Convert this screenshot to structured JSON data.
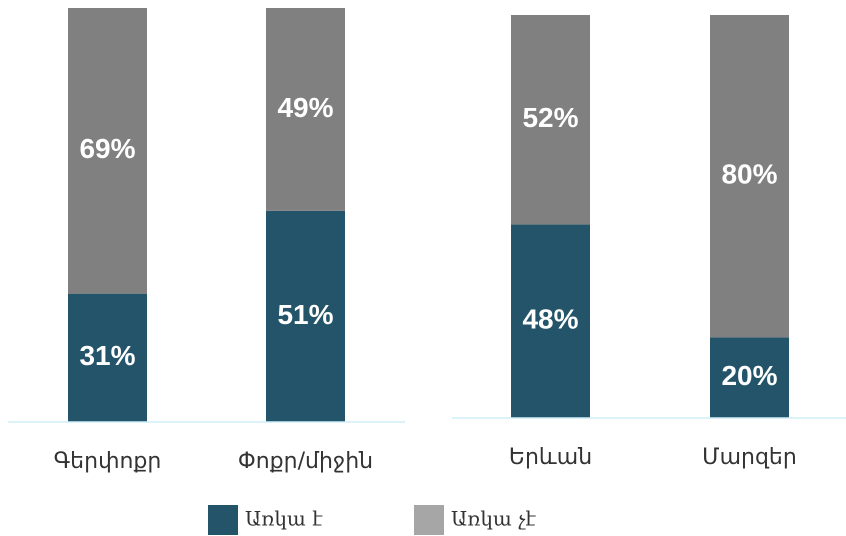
{
  "chart_data": [
    {
      "type": "bar",
      "stacked": true,
      "categories": [
        "Գերփոքր",
        "Փոքր/միջին"
      ],
      "ylim": [
        0,
        100
      ],
      "series": [
        {
          "name": "Առկա է",
          "color": "#23546a",
          "values": [
            31,
            51
          ],
          "value_labels": [
            "31%",
            "51%"
          ]
        },
        {
          "name": "Առկա չէ",
          "color": "#808080",
          "values": [
            69,
            49
          ],
          "value_labels": [
            "69%",
            "49%"
          ]
        }
      ]
    },
    {
      "type": "bar",
      "stacked": true,
      "categories": [
        "Երևան",
        "Մարզեր"
      ],
      "ylim": [
        0,
        100
      ],
      "series": [
        {
          "name": "Առկա է",
          "color": "#23546a",
          "values": [
            48,
            20
          ],
          "value_labels": [
            "48%",
            "20%"
          ]
        },
        {
          "name": "Առկա չէ",
          "color": "#808080",
          "values": [
            52,
            80
          ],
          "value_labels": [
            "52%",
            "80%"
          ]
        }
      ]
    }
  ]
}
